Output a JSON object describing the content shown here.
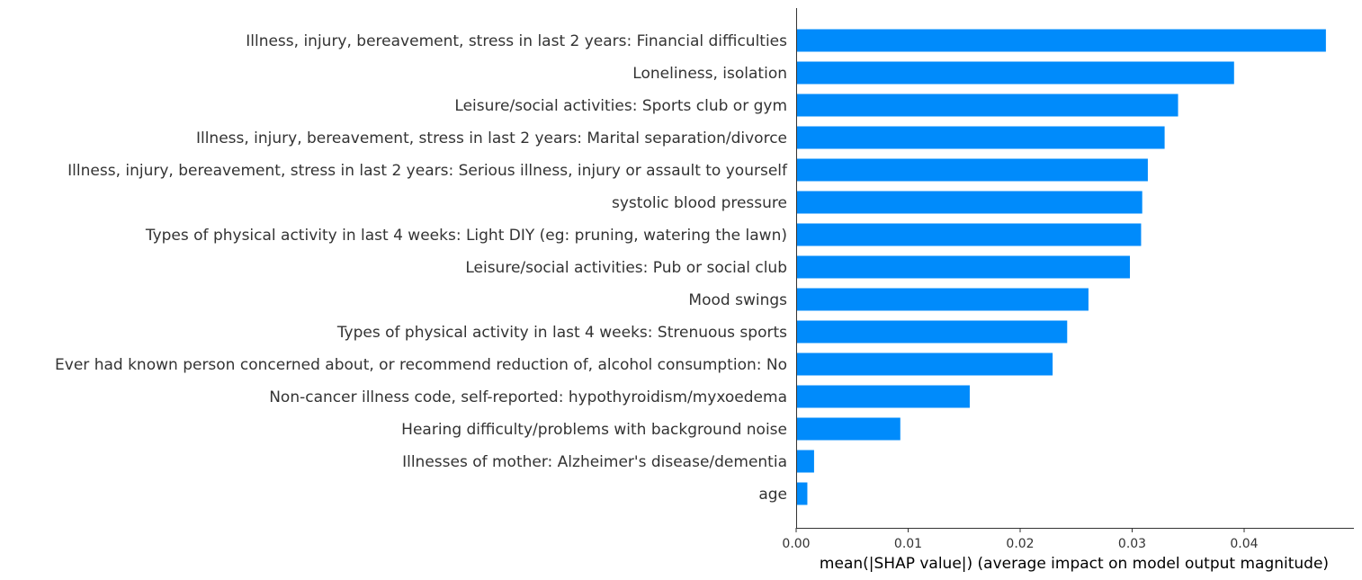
{
  "chart_data": {
    "type": "bar",
    "orientation": "horizontal",
    "categories": [
      "Illness, injury, bereavement, stress in last 2 years: Financial difficulties",
      "Loneliness, isolation",
      "Leisure/social activities: Sports club or gym",
      "Illness, injury, bereavement, stress in last 2 years: Marital separation/divorce",
      "Illness, injury, bereavement, stress in last 2 years: Serious illness, injury or assault to yourself",
      "systolic blood pressure",
      "Types of physical activity in last 4 weeks: Light DIY (eg: pruning, watering the lawn)",
      "Leisure/social activities: Pub or social club",
      "Mood swings",
      "Types of physical activity in last 4 weeks: Strenuous sports",
      "Ever had known person concerned about, or recommend reduction of, alcohol consumption: No",
      "Non-cancer illness code, self-reported: hypothyroidism/myxoedema",
      "Hearing difficulty/problems with background noise",
      "Illnesses of mother: Alzheimer's disease/dementia",
      "age"
    ],
    "values": [
      0.0473,
      0.0391,
      0.0341,
      0.0329,
      0.0314,
      0.0309,
      0.0308,
      0.0298,
      0.0261,
      0.0242,
      0.0229,
      0.0155,
      0.0093,
      0.0016,
      0.001
    ],
    "xlabel": "mean(|SHAP value|) (average impact on model output magnitude)",
    "ylabel": "",
    "title": "",
    "xlim": [
      0,
      0.0498
    ],
    "xticks": [
      0,
      0.01,
      0.02,
      0.03,
      0.04
    ],
    "xtick_labels": [
      "0.00",
      "0.01",
      "0.02",
      "0.03",
      "0.04"
    ],
    "grid": false,
    "bar_color": "#008bfb",
    "axis_color": "#333333"
  }
}
